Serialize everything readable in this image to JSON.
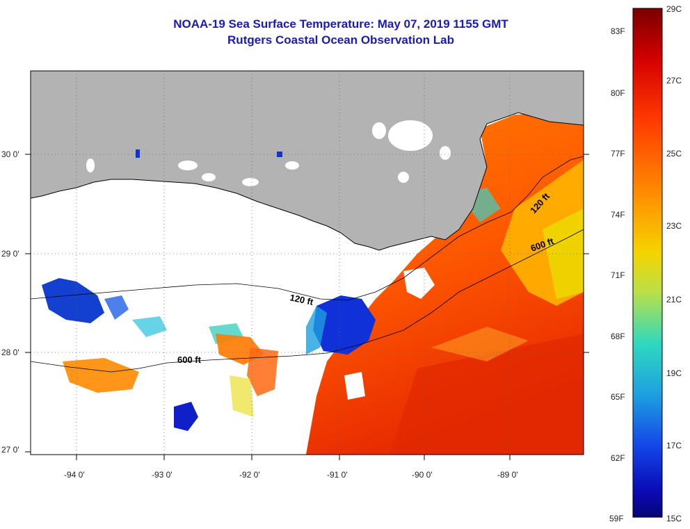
{
  "header": {
    "title": "NOAA-19 Sea Surface Temperature:  May 07, 2019 1155 GMT",
    "subtitle": "Rutgers Coastal Ocean Observation Lab"
  },
  "map": {
    "lat_labels": [
      "30 0'",
      "29 0'",
      "28 0'",
      "27 0'"
    ],
    "lon_labels": [
      "-94 0'",
      "-93 0'",
      "-92 0'",
      "-91 0'",
      "-90 0'",
      "-89 0'"
    ],
    "contour_labels": [
      "120 ft",
      "600 ft",
      "120 ft",
      "600 ft"
    ],
    "land_color": "#b3b3b3",
    "cloud_color": "#ffffff"
  },
  "colorbar": {
    "fahrenheit_labels": [
      "83F",
      "80F",
      "77F",
      "74F",
      "71F",
      "68F",
      "65F",
      "62F",
      "59F"
    ],
    "celsius_labels": [
      "29C",
      "27C",
      "25C",
      "23C",
      "21C",
      "19C",
      "17C",
      "15C"
    ],
    "stops": [
      "#7a0000",
      "#d40000",
      "#ff3a00",
      "#ff8a00",
      "#f5d400",
      "#b8e04a",
      "#2ed8c0",
      "#1e9fe0",
      "#1446e8",
      "#0a0ab4",
      "#050578"
    ]
  }
}
